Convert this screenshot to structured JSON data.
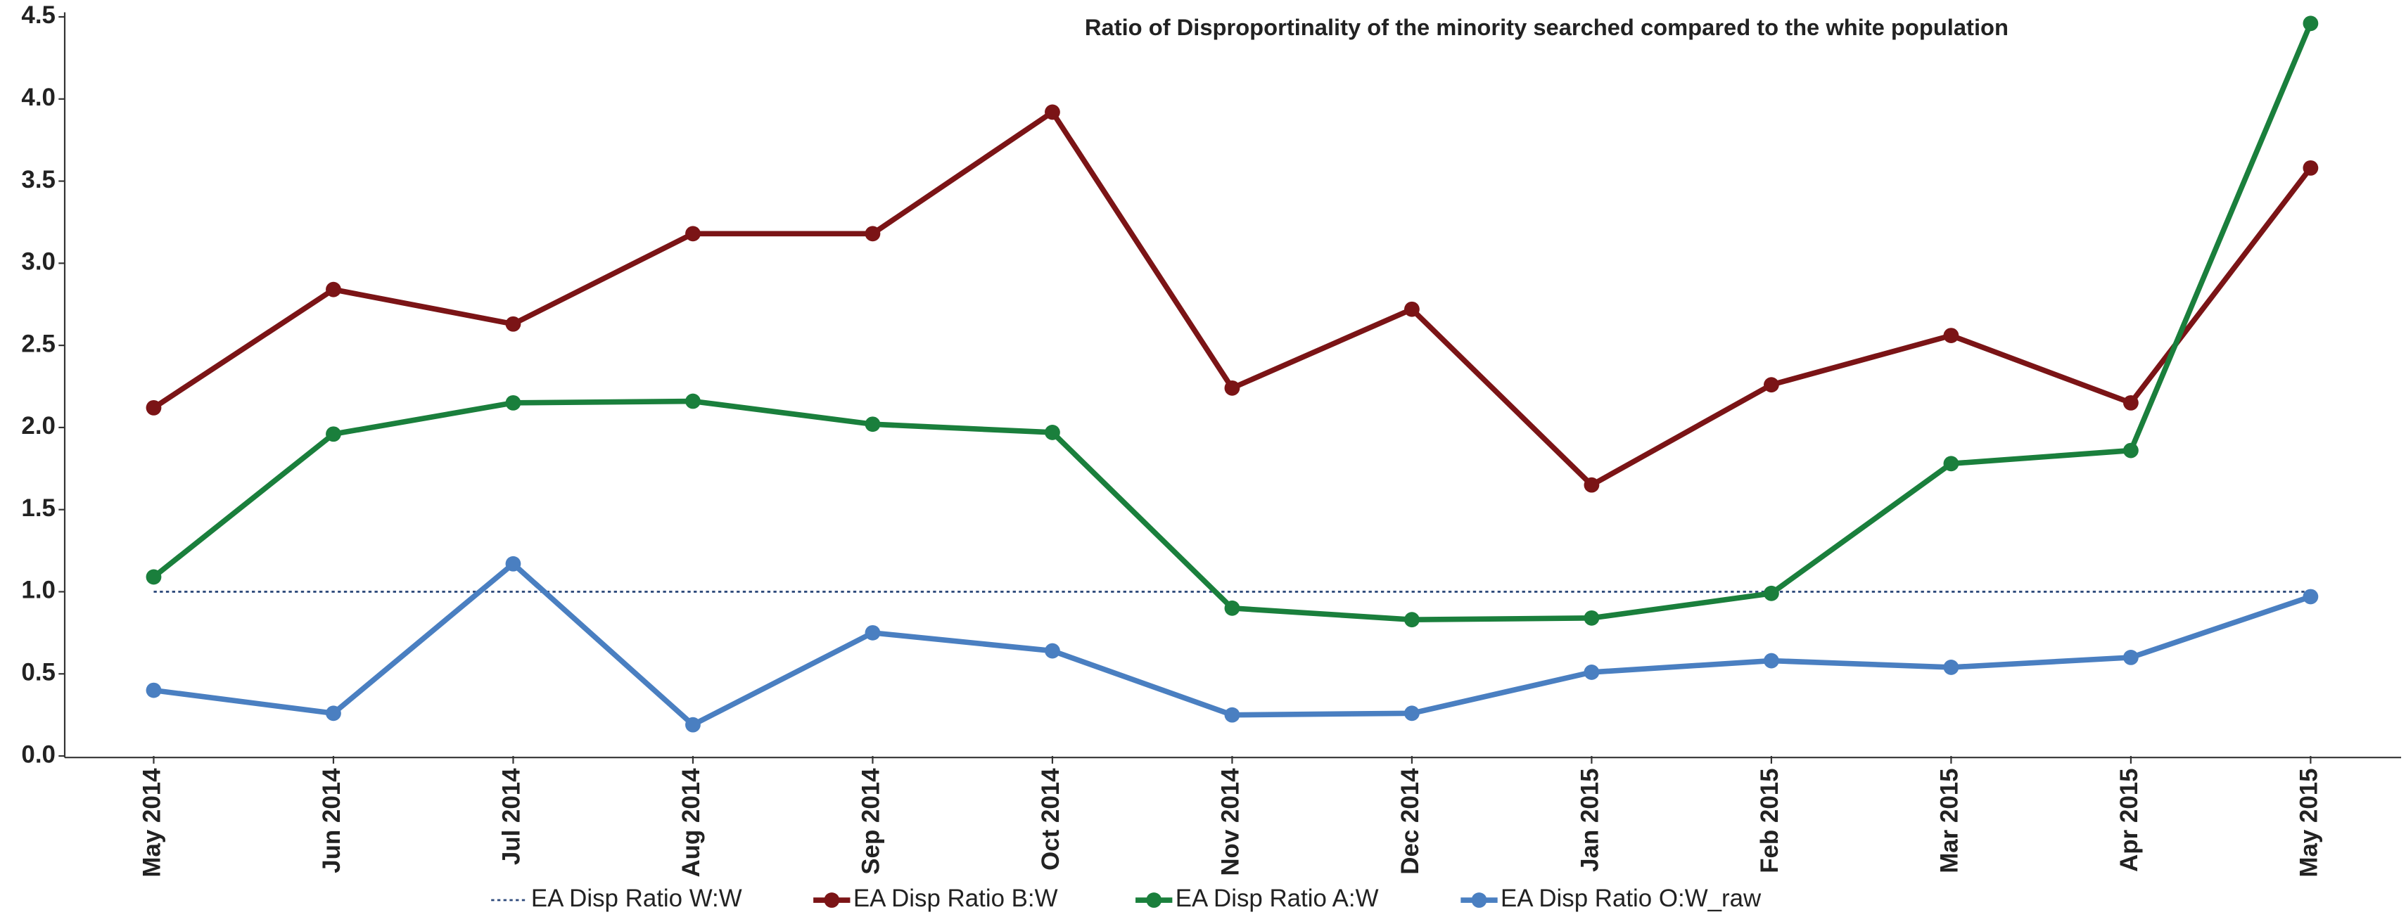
{
  "chart_data": {
    "type": "line",
    "title": "Ratio of Disproportinality of the minority searched compared to the white population",
    "categories": [
      "May 2014",
      "Jun 2014",
      "Jul 2014",
      "Aug 2014",
      "Sep 2014",
      "Oct 2014",
      "Nov 2014",
      "Dec 2014",
      "Jan 2015",
      "Feb 2015",
      "Mar 2015",
      "Apr 2015",
      "May 2015"
    ],
    "series": [
      {
        "name": "EA Disp Ratio W:W",
        "color": "#2f4b7c",
        "dash": "dotted",
        "markers": false,
        "values": [
          1,
          1,
          1,
          1,
          1,
          1,
          1,
          1,
          1,
          1,
          1,
          1,
          1
        ]
      },
      {
        "name": "EA Disp Ratio B:W",
        "color": "#7b1416",
        "dash": "solid",
        "markers": true,
        "values": [
          2.12,
          2.84,
          2.63,
          3.18,
          3.18,
          3.92,
          2.24,
          2.72,
          1.65,
          2.26,
          2.56,
          2.15,
          3.58
        ]
      },
      {
        "name": "EA Disp Ratio A:W",
        "color": "#1a7f3c",
        "dash": "solid",
        "markers": true,
        "values": [
          1.09,
          1.96,
          2.15,
          2.16,
          2.02,
          1.97,
          0.9,
          0.83,
          0.84,
          0.99,
          1.78,
          1.86,
          4.46
        ]
      },
      {
        "name": "EA Disp Ratio O:W_raw",
        "color": "#4a7fc1",
        "dash": "solid",
        "markers": true,
        "values": [
          0.4,
          0.26,
          1.17,
          0.19,
          0.75,
          0.64,
          0.25,
          0.26,
          0.51,
          0.58,
          0.54,
          0.6,
          0.97
        ]
      }
    ],
    "ylim": [
      0,
      4.5
    ],
    "yticks": [
      {
        "value": 0,
        "label": "0.0"
      },
      0.5,
      {
        "value": 1,
        "label": "1.0"
      },
      1.5,
      {
        "value": 2,
        "label": "2.0"
      },
      2.5,
      {
        "value": 3,
        "label": "3.0"
      },
      3.5,
      {
        "value": 4,
        "label": "4.0"
      },
      4.5
    ],
    "grid": false,
    "legend": "bottom"
  }
}
